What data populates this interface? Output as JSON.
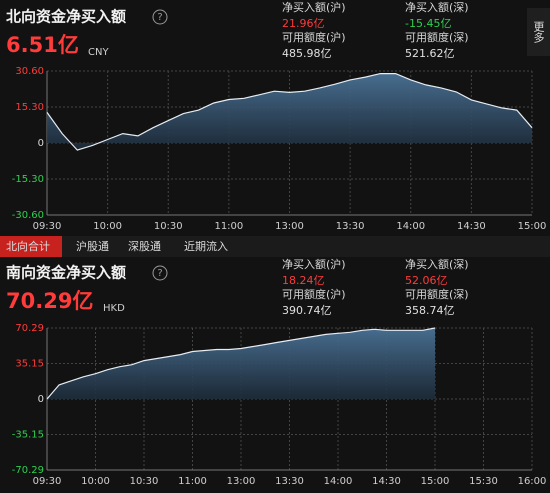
{
  "north": {
    "title": "北向资金净买入额",
    "help_icon": "?",
    "amount": "6.51亿",
    "currency": "CNY",
    "stats": [
      {
        "label": "净买入额(沪)",
        "value": "21.96亿"
      },
      {
        "label": "净买入额(深)",
        "value": "-15.45亿"
      },
      {
        "label": "可用额度(沪)",
        "value": "485.98亿"
      },
      {
        "label": "可用额度(深)",
        "value": "521.62亿"
      }
    ],
    "more": "更多"
  },
  "tabs": [
    "北向合计",
    "沪股通",
    "深股通",
    "近期流入"
  ],
  "south": {
    "title": "南向资金净买入额",
    "help_icon": "?",
    "amount": "70.29亿",
    "currency": "HKD",
    "stats": [
      {
        "label": "净买入额(沪)",
        "value": "18.24亿"
      },
      {
        "label": "净买入额(深)",
        "value": "52.06亿"
      },
      {
        "label": "可用额度(沪)",
        "value": "390.74亿"
      },
      {
        "label": "可用额度(深)",
        "value": "358.74亿"
      }
    ]
  },
  "chart_data": [
    {
      "type": "area",
      "color": "#3d5f80",
      "line_color": "#e6ecf2",
      "categories": [
        "09:30",
        null,
        null,
        null,
        "10:00",
        null,
        null,
        null,
        "10:30",
        null,
        null,
        null,
        "11:00",
        null,
        null,
        null,
        "13:00",
        null,
        null,
        null,
        "13:30",
        null,
        null,
        null,
        "14:00",
        null,
        null,
        null,
        "14:30",
        null,
        null,
        null,
        "15:00"
      ],
      "values": [
        13.0,
        4.0,
        -3.0,
        -1.0,
        1.5,
        4.0,
        3.0,
        6.5,
        9.5,
        12.5,
        14.0,
        17.0,
        18.5,
        19.0,
        20.5,
        22.0,
        21.5,
        22.0,
        23.4,
        25.0,
        26.8,
        28.0,
        29.5,
        29.5,
        26.8,
        24.7,
        23.4,
        21.7,
        18.3,
        16.6,
        14.9,
        14.0,
        6.51
      ],
      "ylim": [
        -30.6,
        30.6
      ],
      "yticks": [
        {
          "value": 30.6,
          "label": "30.60"
        },
        {
          "value": 15.3,
          "label": "15.30"
        },
        0,
        {
          "value": -15.3,
          "label": "-15.30"
        },
        {
          "value": -30.6,
          "label": "-30.60"
        }
      ],
      "grid": true
    },
    {
      "type": "area",
      "color": "#3d5f80",
      "line_color": "#e6ecf2",
      "categories": [
        "09:30",
        null,
        null,
        null,
        "10:00",
        null,
        null,
        null,
        "10:30",
        null,
        null,
        null,
        "11:00",
        null,
        null,
        null,
        "13:00",
        null,
        null,
        null,
        "13:30",
        null,
        null,
        null,
        "14:00",
        null,
        null,
        null,
        "14:30",
        null,
        null,
        null,
        "15:00",
        null,
        null,
        null,
        "15:30",
        null,
        null,
        null,
        "16:00"
      ],
      "values": [
        0,
        14,
        18,
        22,
        25,
        29,
        32,
        34,
        38,
        40,
        42,
        44,
        47,
        48,
        49,
        49,
        50,
        52,
        54,
        56,
        58,
        60,
        62,
        64,
        65,
        66,
        68,
        69,
        68,
        68,
        68,
        68,
        70.29,
        null,
        null,
        null,
        null,
        null,
        null,
        null,
        null
      ],
      "ylim": [
        -70.29,
        70.29
      ],
      "yticks": [
        70.29,
        35.15,
        0,
        -35.15,
        -70.29
      ],
      "grid": true
    }
  ]
}
